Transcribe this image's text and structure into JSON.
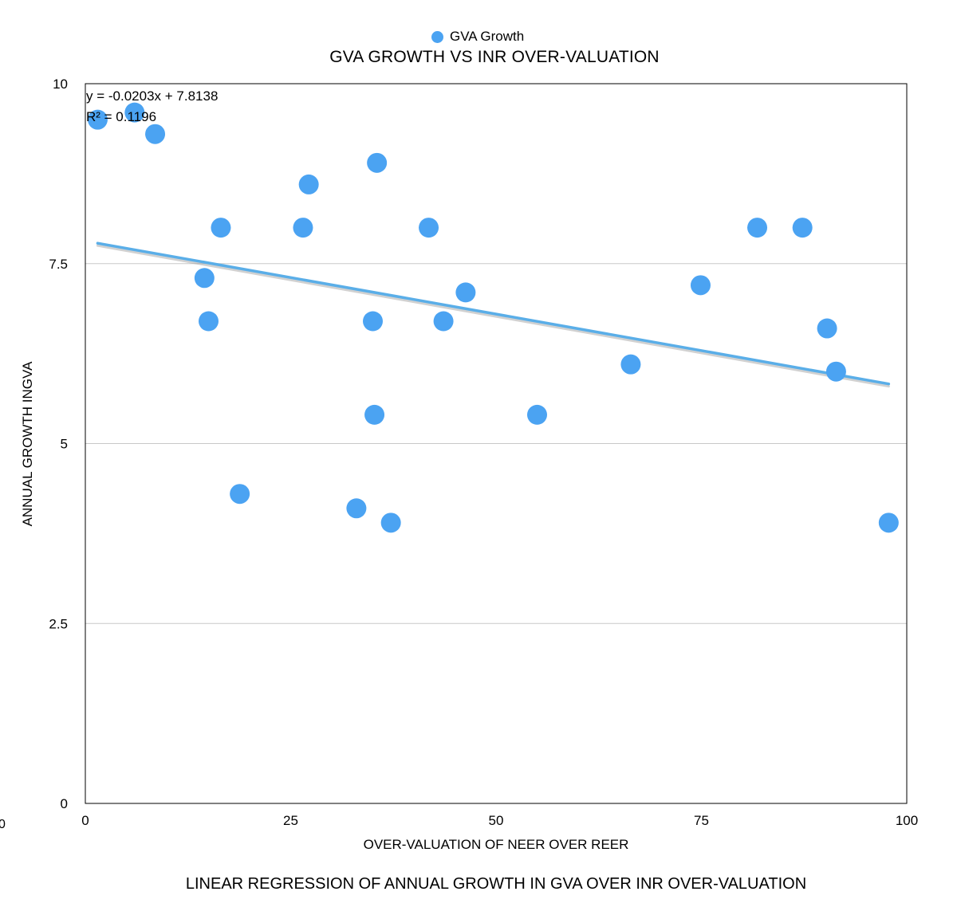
{
  "legend": {
    "label": "GVA Growth"
  },
  "chart_data": {
    "type": "scatter",
    "title": "GVA GROWTH VS INR OVER-VALUATION",
    "xlabel": "OVER-VALUATION OF NEER OVER REER",
    "ylabel": "ANNUAL GROWTH INGVA",
    "caption": "LINEAR REGRESSION OF ANNUAL GROWTH IN GVA OVER INR OVER-VALUATION",
    "xlim": [
      0,
      100
    ],
    "ylim": [
      0,
      10
    ],
    "x_ticks": [
      {
        "value": 0,
        "label": "0"
      },
      {
        "value": 25,
        "label": "25"
      },
      {
        "value": 50,
        "label": "50"
      },
      {
        "value": 75,
        "label": "75"
      },
      {
        "value": 100,
        "label": "100"
      }
    ],
    "y_ticks": [
      {
        "value": 0,
        "label": "0"
      },
      {
        "value": 2.5,
        "label": "2.5"
      },
      {
        "value": 5,
        "label": "5"
      },
      {
        "value": 7.5,
        "label": "7.5"
      },
      {
        "value": 10,
        "label": "10"
      }
    ],
    "grid": "horizontal",
    "legend_position": "top-center",
    "series": [
      {
        "name": "GVA Growth",
        "color": "#4ba3f2",
        "points": [
          {
            "x": 1.5,
            "y": 9.5
          },
          {
            "x": 6.0,
            "y": 9.6
          },
          {
            "x": 8.5,
            "y": 9.3
          },
          {
            "x": 16.5,
            "y": 8.0
          },
          {
            "x": 14.5,
            "y": 7.3
          },
          {
            "x": 15.0,
            "y": 6.7
          },
          {
            "x": 18.8,
            "y": 4.3
          },
          {
            "x": 26.5,
            "y": 8.0
          },
          {
            "x": 27.2,
            "y": 8.6
          },
          {
            "x": 35.5,
            "y": 8.9
          },
          {
            "x": 35.0,
            "y": 6.7
          },
          {
            "x": 35.2,
            "y": 5.4
          },
          {
            "x": 33.0,
            "y": 4.1
          },
          {
            "x": 37.2,
            "y": 3.9
          },
          {
            "x": 41.8,
            "y": 8.0
          },
          {
            "x": 46.3,
            "y": 7.1
          },
          {
            "x": 43.6,
            "y": 6.7
          },
          {
            "x": 55.0,
            "y": 5.4
          },
          {
            "x": 66.4,
            "y": 6.1
          },
          {
            "x": 74.9,
            "y": 7.2
          },
          {
            "x": 81.8,
            "y": 8.0
          },
          {
            "x": 87.3,
            "y": 8.0
          },
          {
            "x": 90.3,
            "y": 6.6
          },
          {
            "x": 91.4,
            "y": 6.0
          },
          {
            "x": 97.8,
            "y": 3.9
          }
        ]
      }
    ],
    "trendline": {
      "type": "linear",
      "color": "#5aaee8",
      "slope": -0.0203,
      "intercept": 7.8138,
      "x_range": [
        1.5,
        97.8
      ],
      "equation": "y = -0.0203x + 7.8138",
      "r_squared": "R² = 0.1196"
    },
    "stray_label": "0"
  }
}
